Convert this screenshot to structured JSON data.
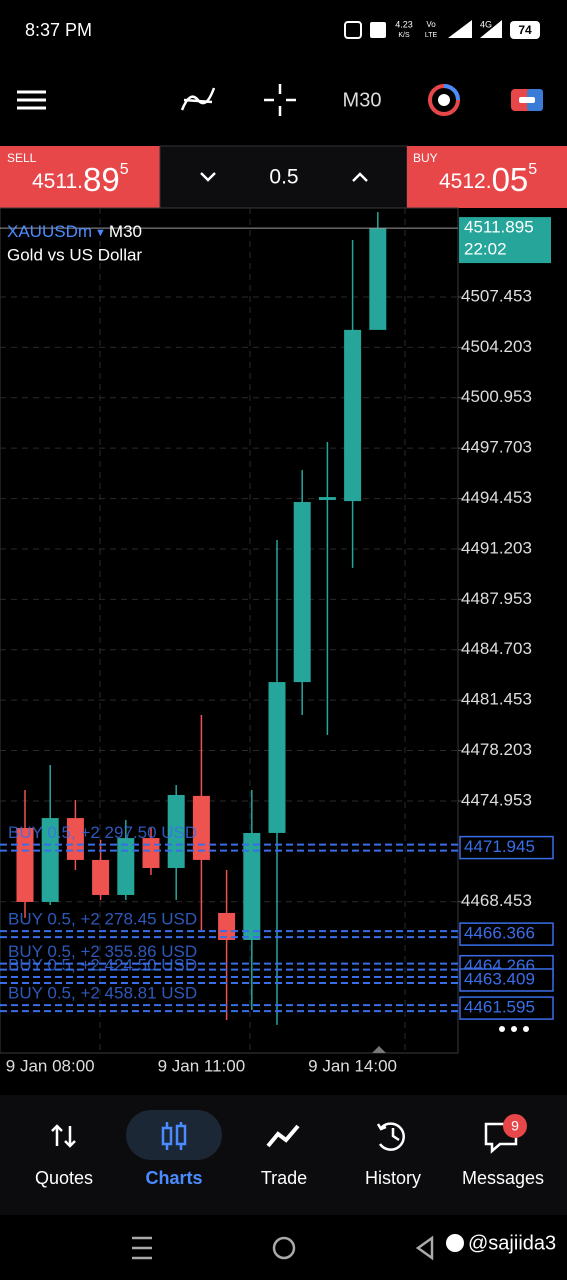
{
  "status_bar": {
    "time": "8:37 PM",
    "speed": "4.23",
    "speed_unit": "K/S",
    "volte_top": "Vo",
    "volte_bottom": "LTE",
    "network": "4G",
    "battery": "74"
  },
  "toolbar": {
    "timeframe": "M30"
  },
  "trade_panel": {
    "sell": {
      "label": "SELL",
      "price_head": "4511.",
      "price_big": "89",
      "price_sup": "5"
    },
    "volume": "0.5",
    "buy": {
      "label": "BUY",
      "price_head": "4512.",
      "price_big": "05",
      "price_sup": "5"
    }
  },
  "chart_data": {
    "type": "candlestick",
    "symbol": "XAUUSDm",
    "timeframe": "M30",
    "subtitle": "Gold vs US Dollar",
    "categories": [
      null,
      "9 Jan 08:00",
      null,
      null,
      null,
      null,
      null,
      "9 Jan 11:00",
      null,
      null,
      null,
      null,
      null,
      "9 Jan 14:00",
      null
    ],
    "open": [
      4473.21,
      4468.44,
      4473.85,
      4471.15,
      4468.89,
      4472.56,
      4470.63,
      4475.28,
      4467.73,
      4465.99,
      4472.89,
      4482.62,
      4494.36,
      4494.29,
      4505.33
    ],
    "high": [
      4475.66,
      4477.27,
      4475.02,
      4472.44,
      4473.73,
      4473.21,
      4475.98,
      4480.5,
      4470.5,
      4475.66,
      4491.78,
      4496.29,
      4498.1,
      4511.13,
      4512.93
    ],
    "low": [
      4467.41,
      4468.24,
      4470.5,
      4468.57,
      4468.57,
      4470.18,
      4468.57,
      4466.63,
      4460.83,
      4461.47,
      4460.51,
      4480.5,
      4479.21,
      4489.98,
      4505.33
    ],
    "close": [
      4468.44,
      4473.85,
      4471.15,
      4468.89,
      4472.56,
      4470.63,
      4475.34,
      4471.15,
      4465.99,
      4472.89,
      4482.62,
      4494.23,
      4494.55,
      4505.33,
      4511.9
    ],
    "up_color": "#26a69a",
    "down_color": "#ef5350",
    "ylim": [
      4458.7,
      4513.19
    ],
    "yticks": [
      4507.453,
      4504.203,
      4500.953,
      4497.703,
      4494.453,
      4491.203,
      4487.953,
      4484.703,
      4481.453,
      4478.203,
      4474.953,
      4468.453
    ],
    "grid": true,
    "current_price": 4511.895,
    "current_time": "22:02",
    "orders": [
      {
        "price": 4471.945,
        "text": "BUY 0.5, +2 297.50 USD"
      },
      {
        "price": 4466.366,
        "text": "BUY 0.5, +2 278.45 USD"
      },
      {
        "price": 4464.266,
        "text": "BUY 0.5, +2 355.86 USD"
      },
      {
        "price": 4463.409,
        "text": "BUY 0.5, +2 424.50 USD"
      },
      {
        "price": 4461.595,
        "text": "BUY 0.5, +2 458.81 USD"
      }
    ],
    "order_color": "#3a6ee8"
  },
  "nav": {
    "items": [
      "Quotes",
      "Charts",
      "Trade",
      "History",
      "Messages"
    ],
    "active": 1,
    "badge": "9"
  },
  "watermark": "@sajiida3"
}
